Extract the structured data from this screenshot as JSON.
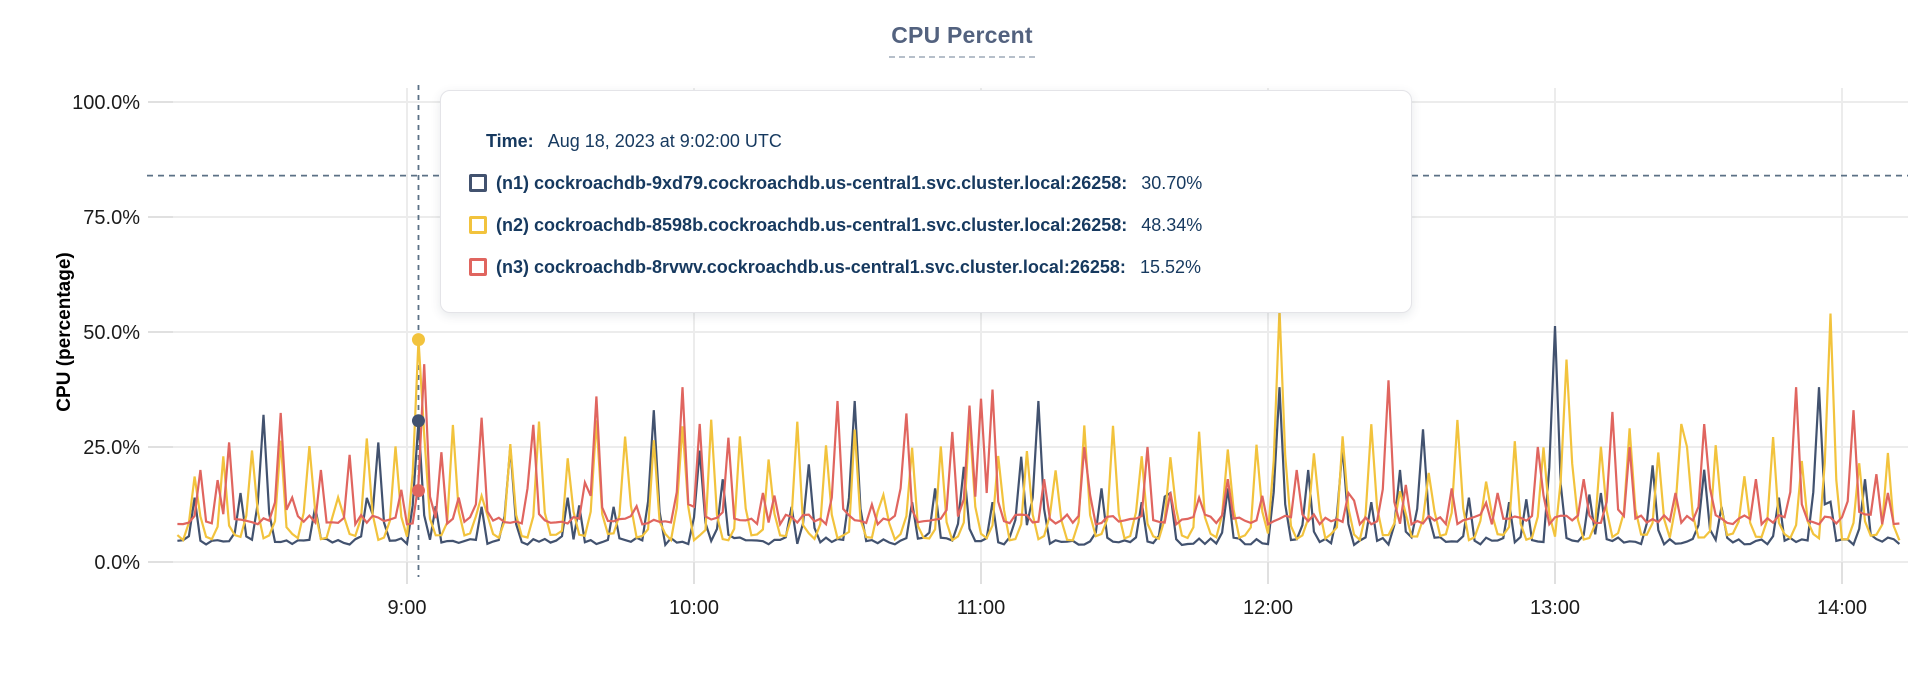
{
  "header": {
    "title": "CPU Percent"
  },
  "tooltip": {
    "time_label": "Time:",
    "time_value": "Aug 18, 2023 at 9:02:00 UTC",
    "rows": [
      {
        "node": "n1",
        "label": "(n1) cockroachdb-9xd79.cockroachdb.us-central1.svc.cluster.local:26258:",
        "value": "30.70%",
        "color": "#42526f"
      },
      {
        "node": "n2",
        "label": "(n2) cockroachdb-8598b.cockroachdb.us-central1.svc.cluster.local:26258:",
        "value": "48.34%",
        "color": "#f2c33d"
      },
      {
        "node": "n3",
        "label": "(n3) cockroachdb-8rvwv.cockroachdb.us-central1.svc.cluster.local:26258:",
        "value": "15.52%",
        "color": "#e0655f"
      }
    ]
  },
  "chart_data": {
    "type": "line",
    "title": "CPU Percent",
    "xlabel": "",
    "ylabel": "CPU (percentage)",
    "ylim": [
      0,
      100
    ],
    "grid": true,
    "y_ticks": [
      {
        "value": 0,
        "label": "0.0%"
      },
      {
        "value": 25,
        "label": "25.0%"
      },
      {
        "value": 50,
        "label": "50.0%"
      },
      {
        "value": 75,
        "label": "75.0%"
      },
      {
        "value": 100,
        "label": "100.0%"
      }
    ],
    "x_ticks": [
      {
        "minute": 540,
        "label": "9:00"
      },
      {
        "minute": 600,
        "label": "10:00"
      },
      {
        "minute": 660,
        "label": "11:00"
      },
      {
        "minute": 720,
        "label": "12:00"
      },
      {
        "minute": 780,
        "label": "13:00"
      },
      {
        "minute": 840,
        "label": "14:00"
      }
    ],
    "time_range_minutes": [
      492,
      853
    ],
    "sample_step_minutes": 1.2,
    "threshold_dashed_line_percent": 84,
    "crosshair": {
      "time_minute": 542.4,
      "time_text": "Aug 18, 2023 at 9:02:00 UTC",
      "color": "#5b7186"
    },
    "series": [
      {
        "id": "n1",
        "name": "(n1) cockroachdb-9xd79.cockroachdb.us-central1.svc.cluster.local:26258",
        "color": "#42526f",
        "crosshair_value": 30.7,
        "pattern": "spiky",
        "seed": 11,
        "base": 3.7,
        "baseVar": 1.7,
        "gapMin": 10,
        "gapVar": 18,
        "peakMin": 12,
        "peakMax": 34,
        "features": [
          [
            496,
            14
          ],
          [
            505,
            15
          ],
          [
            510,
            32
          ],
          [
            521,
            12
          ],
          [
            534,
            26
          ],
          [
            542,
            30.7
          ],
          [
            556,
            12
          ],
          [
            562,
            25
          ],
          [
            574,
            14
          ],
          [
            583,
            12
          ],
          [
            592,
            33
          ],
          [
            606,
            18
          ],
          [
            620,
            12
          ],
          [
            633,
            35
          ],
          [
            645,
            13
          ],
          [
            650,
            16
          ],
          [
            662,
            13
          ],
          [
            672,
            35
          ],
          [
            685,
            16
          ],
          [
            693,
            13
          ],
          [
            700,
            15
          ],
          [
            712,
            16
          ],
          [
            722,
            38
          ],
          [
            728,
            20
          ],
          [
            735,
            25
          ],
          [
            742,
            13
          ],
          [
            748,
            20
          ],
          [
            762,
            14
          ],
          [
            770,
            13
          ],
          [
            780,
            51.3
          ],
          [
            790,
            15
          ],
          [
            800,
            21
          ],
          [
            815,
            12
          ],
          [
            827,
            14
          ],
          [
            835,
            38
          ],
          [
            845,
            18
          ]
        ]
      },
      {
        "id": "n2",
        "name": "(n2) cockroachdb-8598b.cockroachdb.us-central1.svc.cluster.local:26258",
        "color": "#f2c33d",
        "crosshair_value": 48.34,
        "pattern": "periodic",
        "seed": 3,
        "base": 4.7,
        "baseVar": 1.6,
        "peakMin": 21,
        "peakMax": 31,
        "features": [
          [
            542,
            48.34
          ],
          [
            598,
            29.5
          ],
          [
            722,
            55
          ],
          [
            782,
            44
          ],
          [
            806,
            30
          ],
          [
            838,
            54
          ]
        ]
      },
      {
        "id": "n3",
        "name": "(n3) cockroachdb-8rvwv.cockroachdb.us-central1.svc.cluster.local:26258",
        "color": "#e0655f",
        "crosshair_value": 15.52,
        "pattern": "spiky",
        "seed": 27,
        "base": 8.2,
        "baseVar": 2.2,
        "gapMin": 5,
        "gapVar": 13,
        "peakMin": 12,
        "peakMax": 38,
        "features": [
          [
            497,
            20
          ],
          [
            503,
            26
          ],
          [
            516,
            14
          ],
          [
            522,
            20
          ],
          [
            542,
            15.52
          ],
          [
            543.5,
            43
          ],
          [
            551,
            14
          ],
          [
            565,
            16
          ],
          [
            580,
            36
          ],
          [
            598,
            38
          ],
          [
            601,
            30
          ],
          [
            614,
            15
          ],
          [
            630,
            35
          ],
          [
            643,
            16
          ],
          [
            657,
            34
          ],
          [
            659.5,
            35.5
          ],
          [
            673,
            18
          ],
          [
            681,
            25
          ],
          [
            695,
            25
          ],
          [
            705,
            14
          ],
          [
            712,
            18
          ],
          [
            726,
            20
          ],
          [
            737,
            15
          ],
          [
            745,
            39.5
          ],
          [
            758,
            16
          ],
          [
            768,
            15
          ],
          [
            776,
            25
          ],
          [
            786,
            18
          ],
          [
            795,
            25
          ],
          [
            805,
            15
          ],
          [
            812,
            16
          ],
          [
            822,
            18
          ],
          [
            830,
            38
          ],
          [
            842,
            33
          ],
          [
            850,
            15
          ]
        ]
      }
    ],
    "legend_position": "tooltip-overlay",
    "colors": {
      "grid": "#ececec",
      "tick_stub": "#e0e0e0",
      "crosshair": "#5b7186",
      "title": "#53627f",
      "tooltip_text": "#16395f"
    }
  }
}
